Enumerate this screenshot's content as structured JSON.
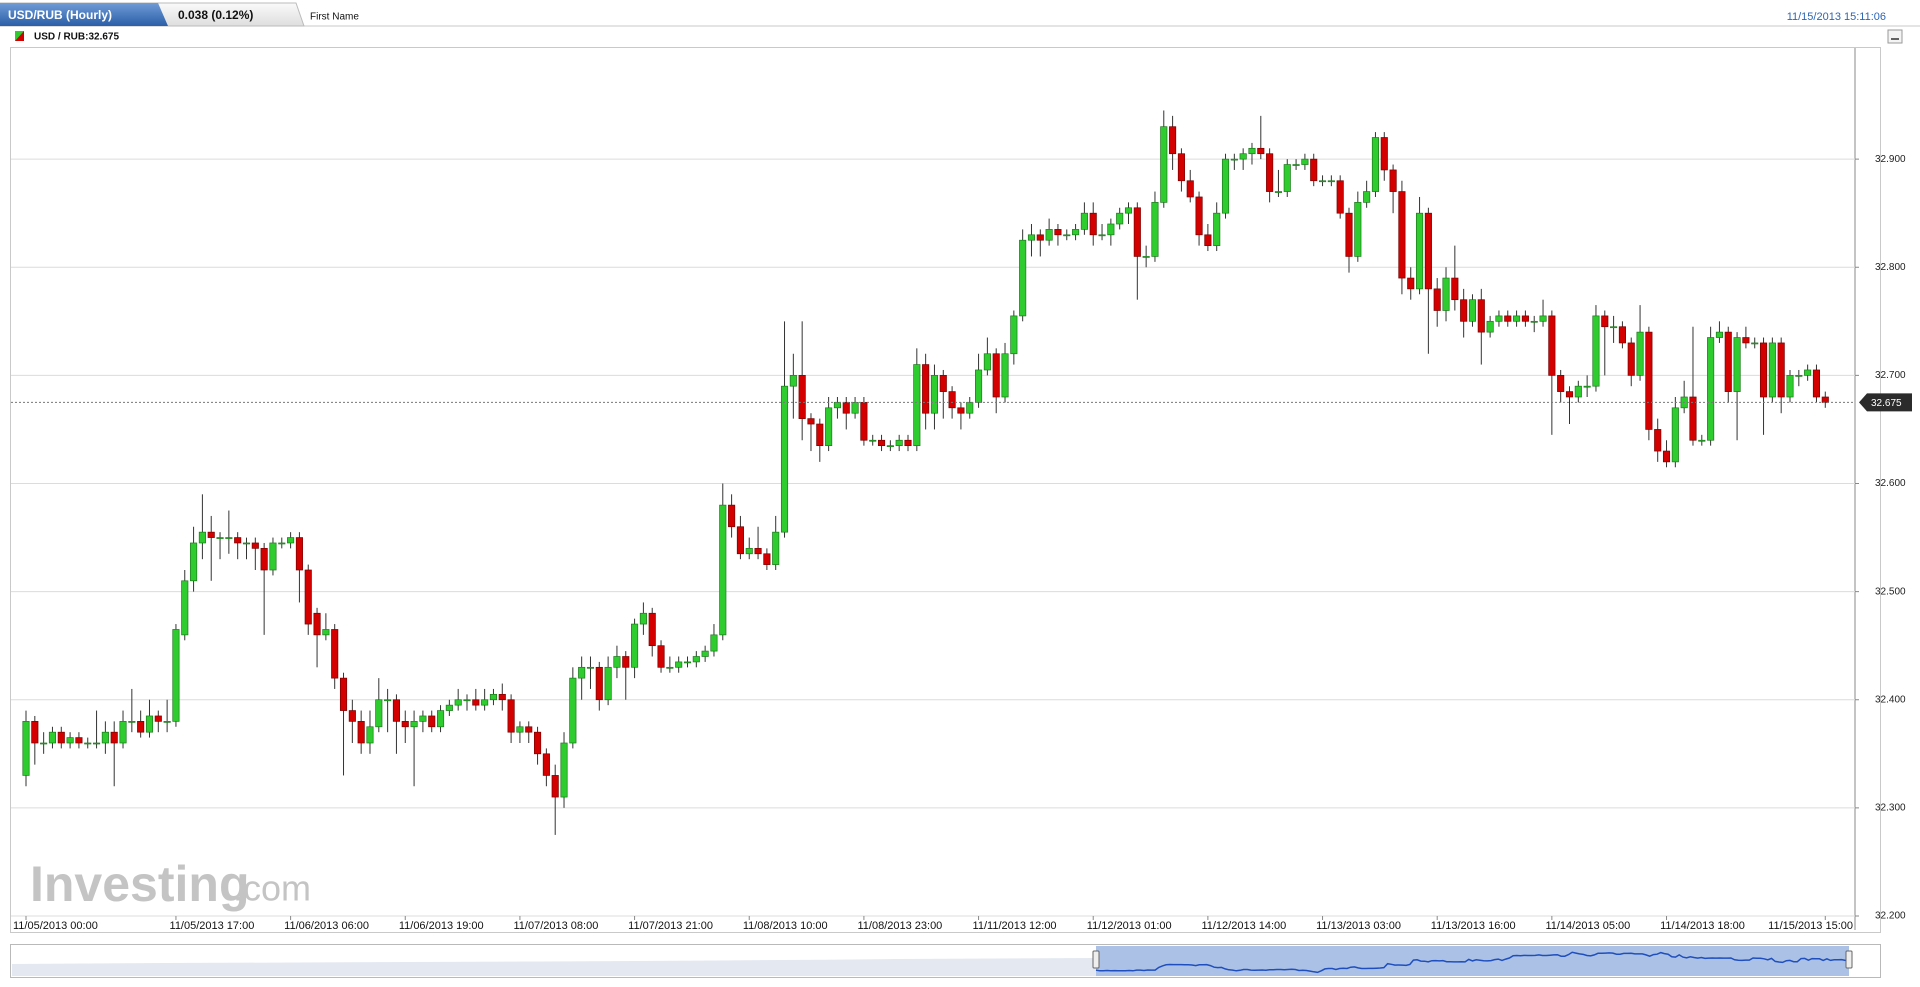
{
  "header": {
    "tab": "USD/RUB (Hourly)",
    "change": "0.038 (0.12%)",
    "name_field": "First Name",
    "timestamp": "11/15/2013 15:11:06"
  },
  "chart_data": {
    "type": "candlestick",
    "legend": "USD / RUB:32.675",
    "watermark": [
      "Investing",
      ".com"
    ],
    "up_color": "#2ecc2e",
    "down_color": "#d40000",
    "grid": true,
    "last_price": 32.675,
    "ylim": [
      32.2,
      33.0
    ],
    "yticks": [
      {
        "value": 32.2,
        "label": "32.200"
      },
      {
        "value": 32.3,
        "label": "32.300"
      },
      {
        "value": 32.4,
        "label": "32.400"
      },
      {
        "value": 32.5,
        "label": "32.500"
      },
      {
        "value": 32.6,
        "label": "32.600"
      },
      {
        "value": 32.7,
        "label": "32.700"
      },
      {
        "value": 32.8,
        "label": "32.800"
      },
      {
        "value": 32.9,
        "label": "32.900"
      }
    ],
    "categories": [
      "11/05/2013 00:00",
      null,
      null,
      null,
      null,
      null,
      null,
      null,
      null,
      null,
      null,
      null,
      null,
      null,
      null,
      null,
      null,
      "11/05/2013 17:00",
      null,
      null,
      null,
      null,
      null,
      null,
      null,
      null,
      null,
      null,
      null,
      null,
      "11/06/2013 06:00",
      null,
      null,
      null,
      null,
      null,
      null,
      null,
      null,
      null,
      null,
      null,
      null,
      "11/06/2013 19:00",
      null,
      null,
      null,
      null,
      null,
      null,
      null,
      null,
      null,
      null,
      null,
      null,
      "11/07/2013 08:00",
      null,
      null,
      null,
      null,
      null,
      null,
      null,
      null,
      null,
      null,
      null,
      null,
      "11/07/2013 21:00",
      null,
      null,
      null,
      null,
      null,
      null,
      null,
      null,
      null,
      null,
      null,
      null,
      "11/08/2013 10:00",
      null,
      null,
      null,
      null,
      null,
      null,
      null,
      null,
      null,
      null,
      null,
      null,
      "11/08/2013 23:00",
      null,
      null,
      null,
      null,
      null,
      null,
      null,
      null,
      null,
      null,
      null,
      null,
      "11/11/2013 12:00",
      null,
      null,
      null,
      null,
      null,
      null,
      null,
      null,
      null,
      null,
      null,
      null,
      "11/12/2013 01:00",
      null,
      null,
      null,
      null,
      null,
      null,
      null,
      null,
      null,
      null,
      null,
      null,
      "11/12/2013 14:00",
      null,
      null,
      null,
      null,
      null,
      null,
      null,
      null,
      null,
      null,
      null,
      null,
      "11/13/2013 03:00",
      null,
      null,
      null,
      null,
      null,
      null,
      null,
      null,
      null,
      null,
      null,
      null,
      "11/13/2013 16:00",
      null,
      null,
      null,
      null,
      null,
      null,
      null,
      null,
      null,
      null,
      null,
      null,
      "11/14/2013 05:00",
      null,
      null,
      null,
      null,
      null,
      null,
      null,
      null,
      null,
      null,
      null,
      null,
      "11/14/2013 18:00",
      null,
      null,
      null,
      null,
      null,
      null,
      null,
      null,
      null,
      null,
      null,
      null,
      null,
      null,
      null,
      null,
      null,
      "11/15/2013 15:00"
    ],
    "ohlc": [
      [
        32.33,
        32.39,
        32.32,
        32.38
      ],
      [
        32.38,
        32.385,
        32.34,
        32.36
      ],
      [
        32.36,
        32.37,
        32.35,
        32.36
      ],
      [
        32.36,
        32.375,
        32.355,
        32.37
      ],
      [
        32.37,
        32.375,
        32.355,
        32.36
      ],
      [
        32.36,
        32.37,
        32.355,
        32.365
      ],
      [
        32.365,
        32.37,
        32.355,
        32.36
      ],
      [
        32.36,
        32.365,
        32.355,
        32.36
      ],
      [
        32.36,
        32.39,
        32.355,
        32.36
      ],
      [
        32.36,
        32.38,
        32.35,
        32.37
      ],
      [
        32.37,
        32.38,
        32.32,
        32.36
      ],
      [
        32.36,
        32.39,
        32.355,
        32.38
      ],
      [
        32.38,
        32.41,
        32.37,
        32.38
      ],
      [
        32.38,
        32.39,
        32.365,
        32.37
      ],
      [
        32.37,
        32.4,
        32.365,
        32.385
      ],
      [
        32.385,
        32.39,
        32.37,
        32.38
      ],
      [
        32.38,
        32.4,
        32.37,
        32.38
      ],
      [
        32.38,
        32.47,
        32.375,
        32.465
      ],
      [
        32.46,
        32.52,
        32.455,
        32.51
      ],
      [
        32.51,
        32.56,
        32.5,
        32.545
      ],
      [
        32.545,
        32.59,
        32.53,
        32.555
      ],
      [
        32.555,
        32.57,
        32.51,
        32.55
      ],
      [
        32.55,
        32.555,
        32.53,
        32.55
      ],
      [
        32.55,
        32.575,
        32.535,
        32.55
      ],
      [
        32.55,
        32.555,
        32.53,
        32.545
      ],
      [
        32.545,
        32.55,
        32.53,
        32.545
      ],
      [
        32.545,
        32.55,
        32.52,
        32.54
      ],
      [
        32.54,
        32.545,
        32.46,
        32.52
      ],
      [
        32.52,
        32.55,
        32.515,
        32.545
      ],
      [
        32.545,
        32.55,
        32.54,
        32.545
      ],
      [
        32.545,
        32.555,
        32.54,
        32.55
      ],
      [
        32.55,
        32.555,
        32.49,
        32.52
      ],
      [
        32.52,
        32.525,
        32.46,
        32.47
      ],
      [
        32.48,
        32.485,
        32.43,
        32.46
      ],
      [
        32.46,
        32.48,
        32.455,
        32.465
      ],
      [
        32.465,
        32.47,
        32.41,
        32.42
      ],
      [
        32.42,
        32.425,
        32.33,
        32.39
      ],
      [
        32.39,
        32.4,
        32.36,
        32.38
      ],
      [
        32.38,
        32.39,
        32.35,
        32.36
      ],
      [
        32.36,
        32.39,
        32.35,
        32.375
      ],
      [
        32.375,
        32.42,
        32.37,
        32.4
      ],
      [
        32.4,
        32.41,
        32.37,
        32.4
      ],
      [
        32.4,
        32.405,
        32.35,
        32.38
      ],
      [
        32.38,
        32.39,
        32.36,
        32.375
      ],
      [
        32.375,
        32.39,
        32.32,
        32.38
      ],
      [
        32.38,
        32.39,
        32.37,
        32.385
      ],
      [
        32.385,
        32.39,
        32.37,
        32.375
      ],
      [
        32.375,
        32.395,
        32.37,
        32.39
      ],
      [
        32.39,
        32.4,
        32.385,
        32.395
      ],
      [
        32.395,
        32.41,
        32.39,
        32.4
      ],
      [
        32.4,
        32.405,
        32.39,
        32.4
      ],
      [
        32.4,
        32.41,
        32.39,
        32.395
      ],
      [
        32.395,
        32.41,
        32.39,
        32.4
      ],
      [
        32.4,
        32.41,
        32.395,
        32.405
      ],
      [
        32.405,
        32.415,
        32.39,
        32.4
      ],
      [
        32.4,
        32.405,
        32.36,
        32.37
      ],
      [
        32.37,
        32.38,
        32.36,
        32.375
      ],
      [
        32.375,
        32.38,
        32.36,
        32.37
      ],
      [
        32.37,
        32.375,
        32.34,
        32.35
      ],
      [
        32.35,
        32.355,
        32.32,
        32.33
      ],
      [
        32.33,
        32.34,
        32.275,
        32.31
      ],
      [
        32.31,
        32.37,
        32.3,
        32.36
      ],
      [
        32.36,
        32.43,
        32.355,
        32.42
      ],
      [
        32.42,
        32.44,
        32.4,
        32.43
      ],
      [
        32.43,
        32.44,
        32.41,
        32.43
      ],
      [
        32.43,
        32.435,
        32.39,
        32.4
      ],
      [
        32.4,
        32.44,
        32.395,
        32.43
      ],
      [
        32.43,
        32.45,
        32.42,
        32.44
      ],
      [
        32.44,
        32.445,
        32.4,
        32.43
      ],
      [
        32.43,
        32.475,
        32.42,
        32.47
      ],
      [
        32.47,
        32.49,
        32.46,
        32.48
      ],
      [
        32.48,
        32.485,
        32.44,
        32.45
      ],
      [
        32.45,
        32.455,
        32.425,
        32.43
      ],
      [
        32.43,
        32.44,
        32.425,
        32.43
      ],
      [
        32.43,
        32.44,
        32.425,
        32.435
      ],
      [
        32.435,
        32.44,
        32.43,
        32.435
      ],
      [
        32.435,
        32.445,
        32.43,
        32.44
      ],
      [
        32.44,
        32.45,
        32.435,
        32.445
      ],
      [
        32.445,
        32.47,
        32.44,
        32.46
      ],
      [
        32.46,
        32.6,
        32.455,
        32.58
      ],
      [
        32.58,
        32.59,
        32.55,
        32.56
      ],
      [
        32.56,
        32.57,
        32.53,
        32.535
      ],
      [
        32.535,
        32.55,
        32.53,
        32.54
      ],
      [
        32.54,
        32.56,
        32.53,
        32.535
      ],
      [
        32.535,
        32.54,
        32.52,
        32.525
      ],
      [
        32.525,
        32.57,
        32.52,
        32.555
      ],
      [
        32.555,
        32.75,
        32.55,
        32.69
      ],
      [
        32.69,
        32.72,
        32.66,
        32.7
      ],
      [
        32.7,
        32.75,
        32.64,
        32.66
      ],
      [
        32.66,
        32.665,
        32.63,
        32.655
      ],
      [
        32.655,
        32.66,
        32.62,
        32.635
      ],
      [
        32.635,
        32.68,
        32.63,
        32.67
      ],
      [
        32.67,
        32.68,
        32.66,
        32.675
      ],
      [
        32.675,
        32.68,
        32.65,
        32.665
      ],
      [
        32.665,
        32.68,
        32.66,
        32.675
      ],
      [
        32.675,
        32.68,
        32.635,
        32.64
      ],
      [
        32.64,
        32.645,
        32.635,
        32.64
      ],
      [
        32.64,
        32.645,
        32.63,
        32.635
      ],
      [
        32.635,
        32.64,
        32.63,
        32.635
      ],
      [
        32.635,
        32.645,
        32.63,
        32.64
      ],
      [
        32.64,
        32.645,
        32.63,
        32.635
      ],
      [
        32.635,
        32.725,
        32.63,
        32.71
      ],
      [
        32.71,
        32.72,
        32.65,
        32.665
      ],
      [
        32.665,
        32.71,
        32.65,
        32.7
      ],
      [
        32.7,
        32.705,
        32.66,
        32.685
      ],
      [
        32.685,
        32.69,
        32.66,
        32.67
      ],
      [
        32.67,
        32.675,
        32.65,
        32.665
      ],
      [
        32.665,
        32.68,
        32.66,
        32.675
      ],
      [
        32.675,
        32.72,
        32.67,
        32.705
      ],
      [
        32.705,
        32.735,
        32.7,
        32.72
      ],
      [
        32.72,
        32.725,
        32.665,
        32.68
      ],
      [
        32.68,
        32.73,
        32.675,
        32.72
      ],
      [
        32.72,
        32.76,
        32.71,
        32.755
      ],
      [
        32.755,
        32.835,
        32.75,
        32.825
      ],
      [
        32.825,
        32.84,
        32.81,
        32.83
      ],
      [
        32.83,
        32.835,
        32.81,
        32.825
      ],
      [
        32.825,
        32.845,
        32.82,
        32.835
      ],
      [
        32.835,
        32.84,
        32.82,
        32.83
      ],
      [
        32.83,
        32.835,
        32.825,
        32.83
      ],
      [
        32.83,
        32.84,
        32.825,
        32.835
      ],
      [
        32.835,
        32.86,
        32.83,
        32.85
      ],
      [
        32.85,
        32.86,
        32.82,
        32.83
      ],
      [
        32.83,
        32.84,
        32.825,
        32.83
      ],
      [
        32.83,
        32.845,
        32.82,
        32.84
      ],
      [
        32.84,
        32.855,
        32.835,
        32.85
      ],
      [
        32.85,
        32.86,
        32.84,
        32.855
      ],
      [
        32.855,
        32.86,
        32.77,
        32.81
      ],
      [
        32.81,
        32.82,
        32.8,
        32.81
      ],
      [
        32.81,
        32.87,
        32.805,
        32.86
      ],
      [
        32.86,
        32.945,
        32.855,
        32.93
      ],
      [
        32.93,
        32.94,
        32.89,
        32.905
      ],
      [
        32.905,
        32.91,
        32.87,
        32.88
      ],
      [
        32.88,
        32.89,
        32.86,
        32.865
      ],
      [
        32.865,
        32.87,
        32.82,
        32.83
      ],
      [
        32.83,
        32.84,
        32.815,
        32.82
      ],
      [
        32.82,
        32.86,
        32.815,
        32.85
      ],
      [
        32.85,
        32.905,
        32.845,
        32.9
      ],
      [
        32.9,
        32.905,
        32.89,
        32.9
      ],
      [
        32.9,
        32.91,
        32.89,
        32.905
      ],
      [
        32.905,
        32.915,
        32.895,
        32.91
      ],
      [
        32.91,
        32.94,
        32.9,
        32.905
      ],
      [
        32.905,
        32.91,
        32.86,
        32.87
      ],
      [
        32.87,
        32.89,
        32.865,
        32.87
      ],
      [
        32.87,
        32.9,
        32.865,
        32.895
      ],
      [
        32.895,
        32.9,
        32.89,
        32.895
      ],
      [
        32.895,
        32.905,
        32.89,
        32.9
      ],
      [
        32.9,
        32.905,
        32.875,
        32.88
      ],
      [
        32.88,
        32.885,
        32.875,
        32.88
      ],
      [
        32.88,
        32.885,
        32.875,
        32.88
      ],
      [
        32.88,
        32.885,
        32.845,
        32.85
      ],
      [
        32.85,
        32.855,
        32.795,
        32.81
      ],
      [
        32.81,
        32.87,
        32.805,
        32.86
      ],
      [
        32.86,
        32.88,
        32.855,
        32.87
      ],
      [
        32.87,
        32.925,
        32.865,
        32.92
      ],
      [
        32.92,
        32.925,
        32.88,
        32.89
      ],
      [
        32.89,
        32.895,
        32.85,
        32.87
      ],
      [
        32.87,
        32.88,
        32.775,
        32.79
      ],
      [
        32.79,
        32.8,
        32.77,
        32.78
      ],
      [
        32.78,
        32.865,
        32.775,
        32.85
      ],
      [
        32.85,
        32.855,
        32.72,
        32.78
      ],
      [
        32.78,
        32.79,
        32.745,
        32.76
      ],
      [
        32.76,
        32.8,
        32.75,
        32.79
      ],
      [
        32.79,
        32.82,
        32.76,
        32.77
      ],
      [
        32.77,
        32.78,
        32.735,
        32.75
      ],
      [
        32.75,
        32.775,
        32.745,
        32.77
      ],
      [
        32.77,
        32.78,
        32.71,
        32.74
      ],
      [
        32.74,
        32.755,
        32.735,
        32.75
      ],
      [
        32.75,
        32.76,
        32.745,
        32.755
      ],
      [
        32.755,
        32.76,
        32.745,
        32.75
      ],
      [
        32.75,
        32.76,
        32.745,
        32.755
      ],
      [
        32.755,
        32.76,
        32.745,
        32.75
      ],
      [
        32.75,
        32.755,
        32.74,
        32.75
      ],
      [
        32.75,
        32.77,
        32.745,
        32.755
      ],
      [
        32.755,
        32.76,
        32.645,
        32.7
      ],
      [
        32.7,
        32.705,
        32.675,
        32.685
      ],
      [
        32.685,
        32.69,
        32.655,
        32.68
      ],
      [
        32.68,
        32.695,
        32.675,
        32.69
      ],
      [
        32.69,
        32.7,
        32.68,
        32.69
      ],
      [
        32.69,
        32.765,
        32.685,
        32.755
      ],
      [
        32.755,
        32.76,
        32.7,
        32.745
      ],
      [
        32.745,
        32.755,
        32.73,
        32.745
      ],
      [
        32.745,
        32.75,
        32.725,
        32.73
      ],
      [
        32.73,
        32.735,
        32.69,
        32.7
      ],
      [
        32.7,
        32.765,
        32.695,
        32.74
      ],
      [
        32.74,
        32.745,
        32.64,
        32.65
      ],
      [
        32.65,
        32.66,
        32.62,
        32.63
      ],
      [
        32.63,
        32.64,
        32.615,
        32.62
      ],
      [
        32.62,
        32.68,
        32.615,
        32.67
      ],
      [
        32.67,
        32.695,
        32.665,
        32.68
      ],
      [
        32.68,
        32.745,
        32.635,
        32.64
      ],
      [
        32.64,
        32.645,
        32.635,
        32.64
      ],
      [
        32.64,
        32.745,
        32.635,
        32.735
      ],
      [
        32.735,
        32.75,
        32.73,
        32.74
      ],
      [
        32.74,
        32.745,
        32.675,
        32.685
      ],
      [
        32.685,
        32.74,
        32.64,
        32.735
      ],
      [
        32.735,
        32.745,
        32.725,
        32.73
      ],
      [
        32.73,
        32.735,
        32.725,
        32.73
      ],
      [
        32.73,
        32.735,
        32.645,
        32.68
      ],
      [
        32.68,
        32.735,
        32.675,
        32.73
      ],
      [
        32.73,
        32.735,
        32.665,
        32.68
      ],
      [
        32.68,
        32.705,
        32.675,
        32.7
      ],
      [
        32.7,
        32.705,
        32.69,
        32.7
      ],
      [
        32.7,
        32.71,
        32.695,
        32.705
      ],
      [
        32.705,
        32.71,
        32.675,
        32.68
      ],
      [
        32.68,
        32.685,
        32.67,
        32.675
      ]
    ]
  }
}
